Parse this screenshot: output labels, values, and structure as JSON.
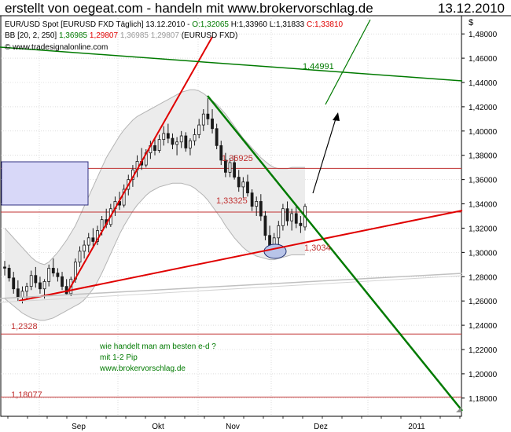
{
  "header": {
    "title": "erstellt von oegeat.com - handeln mit www.brokervorschlag.de",
    "date": "13.12.2010"
  },
  "legend": {
    "instrument": "EUR/USD Spot [EURUSD FXD  Täglich] 13.12.2010 -",
    "open": "O:1,32065",
    "high": "H:1,33960",
    "low": "L:1,31833",
    "close": "C:1,33810",
    "bb_label": "BB [20, 2, 250]",
    "bb_v1": "1,36985",
    "bb_v2": "1,29807",
    "bb_v3": "1,36985 1,29807",
    "bb_source": "(EURUSD FXD)",
    "copyright": "© www.tradesignalonline.com"
  },
  "colors": {
    "candle": "#1a1a1a",
    "grid": "#c8c8c8",
    "band_fill": "#ececec",
    "band_line": "#b4b4b4",
    "red": "#e00000",
    "green": "#007a00",
    "level_line": "#c03030",
    "box_fill": "#d8d8f8",
    "box_stroke": "#303080",
    "ellipse_fill": "#b8c4e8"
  },
  "chart_data": {
    "type": "candlestick",
    "y_axis_label": "$",
    "ylim": [
      1.165,
      1.495
    ],
    "y_ticks": [
      "1,18000",
      "1,20000",
      "1,22000",
      "1,24000",
      "1,26000",
      "1,28000",
      "1,30000",
      "1,32000",
      "1,34000",
      "1,36000",
      "1,38000",
      "1,40000",
      "1,42000",
      "1,44000",
      "1,46000",
      "1,48000"
    ],
    "x_labels": [
      "Sep",
      "Okt",
      "Nov",
      "Dez",
      "2011"
    ],
    "candles": [
      [
        1.288,
        1.293,
        1.281,
        1.287
      ],
      [
        1.287,
        1.29,
        1.276,
        1.279
      ],
      [
        1.279,
        1.284,
        1.266,
        1.27
      ],
      [
        1.27,
        1.277,
        1.26,
        1.263
      ],
      [
        1.263,
        1.272,
        1.258,
        1.268
      ],
      [
        1.268,
        1.275,
        1.262,
        1.272
      ],
      [
        1.272,
        1.285,
        1.269,
        1.281
      ],
      [
        1.281,
        1.288,
        1.271,
        1.275
      ],
      [
        1.275,
        1.28,
        1.266,
        1.27
      ],
      [
        1.27,
        1.278,
        1.262,
        1.276
      ],
      [
        1.276,
        1.29,
        1.272,
        1.287
      ],
      [
        1.287,
        1.295,
        1.28,
        1.283
      ],
      [
        1.283,
        1.287,
        1.276,
        1.28
      ],
      [
        1.28,
        1.284,
        1.269,
        1.272
      ],
      [
        1.272,
        1.278,
        1.265,
        1.266
      ],
      [
        1.266,
        1.28,
        1.264,
        1.278
      ],
      [
        1.278,
        1.295,
        1.275,
        1.292
      ],
      [
        1.292,
        1.305,
        1.288,
        1.301
      ],
      [
        1.301,
        1.31,
        1.295,
        1.306
      ],
      [
        1.306,
        1.316,
        1.3,
        1.312
      ],
      [
        1.312,
        1.32,
        1.305,
        1.309
      ],
      [
        1.309,
        1.322,
        1.306,
        1.318
      ],
      [
        1.318,
        1.33,
        1.314,
        1.327
      ],
      [
        1.327,
        1.336,
        1.32,
        1.323
      ],
      [
        1.323,
        1.34,
        1.321,
        1.336
      ],
      [
        1.336,
        1.346,
        1.33,
        1.342
      ],
      [
        1.342,
        1.35,
        1.335,
        1.339
      ],
      [
        1.339,
        1.356,
        1.337,
        1.352
      ],
      [
        1.352,
        1.364,
        1.347,
        1.36
      ],
      [
        1.36,
        1.372,
        1.354,
        1.368
      ],
      [
        1.368,
        1.38,
        1.362,
        1.375
      ],
      [
        1.375,
        1.386,
        1.368,
        1.372
      ],
      [
        1.372,
        1.385,
        1.37,
        1.382
      ],
      [
        1.382,
        1.392,
        1.377,
        1.388
      ],
      [
        1.388,
        1.395,
        1.38,
        1.384
      ],
      [
        1.384,
        1.397,
        1.382,
        1.393
      ],
      [
        1.393,
        1.404,
        1.388,
        1.398
      ],
      [
        1.398,
        1.406,
        1.39,
        1.394
      ],
      [
        1.394,
        1.398,
        1.385,
        1.389
      ],
      [
        1.389,
        1.395,
        1.38,
        1.391
      ],
      [
        1.391,
        1.4,
        1.386,
        1.396
      ],
      [
        1.396,
        1.399,
        1.383,
        1.386
      ],
      [
        1.386,
        1.394,
        1.38,
        1.392
      ],
      [
        1.392,
        1.402,
        1.388,
        1.397
      ],
      [
        1.397,
        1.41,
        1.394,
        1.405
      ],
      [
        1.405,
        1.418,
        1.4,
        1.414
      ],
      [
        1.414,
        1.427,
        1.405,
        1.41
      ],
      [
        1.41,
        1.418,
        1.398,
        1.402
      ],
      [
        1.402,
        1.406,
        1.385,
        1.388
      ],
      [
        1.388,
        1.392,
        1.372,
        1.376
      ],
      [
        1.376,
        1.382,
        1.362,
        1.366
      ],
      [
        1.366,
        1.378,
        1.362,
        1.374
      ],
      [
        1.374,
        1.38,
        1.36,
        1.362
      ],
      [
        1.362,
        1.368,
        1.35,
        1.354
      ],
      [
        1.354,
        1.362,
        1.345,
        1.358
      ],
      [
        1.358,
        1.364,
        1.346,
        1.349
      ],
      [
        1.349,
        1.352,
        1.334,
        1.338
      ],
      [
        1.338,
        1.346,
        1.33,
        1.342
      ],
      [
        1.342,
        1.348,
        1.326,
        1.33
      ],
      [
        1.33,
        1.334,
        1.31,
        1.314
      ],
      [
        1.314,
        1.322,
        1.298,
        1.302
      ],
      [
        1.302,
        1.316,
        1.296,
        1.312
      ],
      [
        1.312,
        1.326,
        1.304,
        1.322
      ],
      [
        1.322,
        1.34,
        1.318,
        1.336
      ],
      [
        1.336,
        1.342,
        1.322,
        1.326
      ],
      [
        1.326,
        1.336,
        1.318,
        1.332
      ],
      [
        1.332,
        1.338,
        1.32,
        1.324
      ],
      [
        1.324,
        1.33,
        1.316,
        1.322
      ],
      [
        1.321,
        1.34,
        1.318,
        1.338
      ]
    ],
    "bands": {
      "upper": [
        1.32,
        1.316,
        1.312,
        1.308,
        1.304,
        1.3,
        1.296,
        1.293,
        1.291,
        1.29,
        1.292,
        1.296,
        1.3,
        1.305,
        1.31,
        1.316,
        1.322,
        1.33,
        1.338,
        1.346,
        1.354,
        1.362,
        1.37,
        1.378,
        1.384,
        1.39,
        1.396,
        1.401,
        1.405,
        1.409,
        1.412,
        1.414,
        1.416,
        1.418,
        1.42,
        1.422,
        1.424,
        1.426,
        1.428,
        1.43,
        1.432,
        1.433,
        1.434,
        1.434,
        1.433,
        1.431,
        1.428,
        1.425,
        1.422,
        1.418,
        1.414,
        1.409,
        1.404,
        1.399,
        1.394,
        1.39,
        1.386,
        1.382,
        1.378,
        1.375,
        1.372,
        1.37,
        1.369,
        1.369,
        1.369,
        1.37,
        1.37,
        1.37,
        1.37
      ],
      "lower": [
        1.262,
        1.259,
        1.256,
        1.253,
        1.25,
        1.248,
        1.246,
        1.245,
        1.244,
        1.244,
        1.245,
        1.246,
        1.248,
        1.25,
        1.252,
        1.254,
        1.256,
        1.258,
        1.261,
        1.265,
        1.27,
        1.276,
        1.283,
        1.291,
        1.299,
        1.307,
        1.315,
        1.322,
        1.328,
        1.334,
        1.339,
        1.343,
        1.347,
        1.35,
        1.352,
        1.354,
        1.355,
        1.356,
        1.357,
        1.357,
        1.357,
        1.356,
        1.355,
        1.353,
        1.35,
        1.347,
        1.343,
        1.338,
        1.333,
        1.328,
        1.322,
        1.317,
        1.312,
        1.308,
        1.304,
        1.301,
        1.299,
        1.297,
        1.296,
        1.295,
        1.294,
        1.294,
        1.295,
        1.296,
        1.297,
        1.298,
        1.298,
        1.298,
        1.298
      ]
    },
    "level_lines": [
      {
        "label": "1,36925",
        "value": 1.36925
      },
      {
        "label": "1,33325",
        "value": 1.33325
      },
      {
        "label": "1,2328",
        "value": 1.2328
      },
      {
        "label": "1,18077",
        "value": 1.18077
      }
    ],
    "labels": {
      "green_level": "1,44991",
      "low_level": "1,3034"
    },
    "annotation": [
      "wie handelt man am besten e-d ?",
      "mit 1-2 Pip",
      "www.brokervorschlag.de"
    ]
  }
}
